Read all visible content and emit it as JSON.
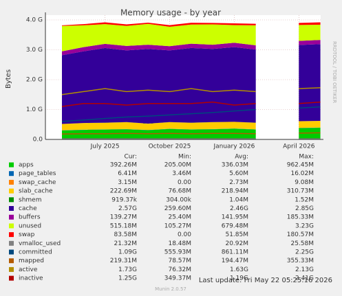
{
  "chart_data": {
    "type": "area",
    "title": "Memory usage - by year",
    "y_label": "Bytes",
    "watermark": "RRDTOOL / TOBI OETIKER",
    "categories": [
      null,
      null,
      "July 2025",
      null,
      null,
      "October 2025",
      null,
      null,
      "January 2026",
      null,
      null,
      "April 2026",
      null
    ],
    "ylim": [
      0,
      4000000000
    ],
    "yticks": [
      {
        "value": 0,
        "label": "0.0"
      },
      {
        "value": 1000000000,
        "label": "1.0 G"
      },
      {
        "value": 2000000000,
        "label": "2.0 G"
      },
      {
        "value": 3000000000,
        "label": "3.0 G"
      },
      {
        "value": 4000000000,
        "label": "4.0 G"
      }
    ],
    "grid": true,
    "legend_headers": [
      "Cur:",
      "Min:",
      "Avg:",
      "Max:"
    ],
    "series": [
      {
        "name": "apps",
        "color": "#00cc00",
        "style": "stack",
        "stats": [
          "392.26M",
          "205.00M",
          "336.03M",
          "962.45M"
        ],
        "values": [
          300000000.0,
          320000000.0,
          330000000.0,
          340000000.0,
          310000000.0,
          350000000.0,
          330000000.0,
          340000000.0,
          360000000.0,
          330000000.0,
          null,
          380000000.0,
          390000000.0
        ]
      },
      {
        "name": "page_tables",
        "color": "#0066b3",
        "style": "stack",
        "stats": [
          "6.41M",
          "3.46M",
          "5.60M",
          "16.02M"
        ],
        "values": [
          5000000.0,
          5200000.0,
          5500000.0,
          5600000.0,
          5400000.0,
          5800000.0,
          5600000.0,
          5700000.0,
          6000000.0,
          5600000.0,
          null,
          6200000.0,
          6400000.0
        ]
      },
      {
        "name": "swap_cache",
        "color": "#ff8000",
        "style": "stack",
        "stats": [
          "3.15M",
          "0.00",
          "2.73M",
          "9.08M"
        ],
        "values": [
          2000000.0,
          2500000.0,
          2700000.0,
          3000000.0,
          2600000.0,
          2800000.0,
          2700000.0,
          2900000.0,
          3000000.0,
          2700000.0,
          null,
          3100000.0,
          3200000.0
        ]
      },
      {
        "name": "slab_cache",
        "color": "#ffcc00",
        "style": "stack",
        "stats": [
          "222.69M",
          "76.68M",
          "218.94M",
          "310.73M"
        ],
        "values": [
          210000000.0,
          220000000.0,
          220000000.0,
          230000000.0,
          210000000.0,
          220000000.0,
          220000000.0,
          230000000.0,
          220000000.0,
          220000000.0,
          null,
          220000000.0,
          220000000.0
        ]
      },
      {
        "name": "shmem",
        "color": "#008f00",
        "style": "stack",
        "stats": [
          "919.37k",
          "304.00k",
          "1.04M",
          "1.52M"
        ],
        "values": [
          1000000.0,
          1000000.0,
          1100000.0,
          1000000.0,
          1000000.0,
          1100000.0,
          1000000.0,
          1000000.0,
          1100000.0,
          1000000.0,
          null,
          900000.0,
          900000.0
        ]
      },
      {
        "name": "cache",
        "color": "#330099",
        "style": "stack",
        "stats": [
          "2.57G",
          "259.60M",
          "2.46G",
          "2.85G"
        ],
        "values": [
          2300000000.0,
          2400000000.0,
          2500000000.0,
          2400000000.0,
          2500000000.0,
          2400000000.0,
          2500000000.0,
          2450000000.0,
          2500000000.0,
          2450000000.0,
          null,
          2550000000.0,
          2570000000.0
        ]
      },
      {
        "name": "buffers",
        "color": "#990099",
        "style": "stack",
        "stats": [
          "139.27M",
          "25.40M",
          "141.95M",
          "185.33M"
        ],
        "values": [
          130000000.0,
          140000000.0,
          140000000.0,
          150000000.0,
          140000000.0,
          140000000.0,
          145000000.0,
          140000000.0,
          145000000.0,
          140000000.0,
          null,
          140000000.0,
          140000000.0
        ]
      },
      {
        "name": "unused",
        "color": "#ccff00",
        "style": "stack",
        "stats": [
          "515.18M",
          "105.27M",
          "679.48M",
          "3.23G"
        ],
        "values": [
          850000000.0,
          730000000.0,
          660000000.0,
          670000000.0,
          700000000.0,
          650000000.0,
          640000000.0,
          680000000.0,
          590000000.0,
          670000000.0,
          null,
          530000000.0,
          510000000.0
        ]
      },
      {
        "name": "swap",
        "color": "#ff0000",
        "style": "stack",
        "stats": [
          "83.58M",
          "0.00",
          "51.85M",
          "180.57M"
        ],
        "values": [
          20000000.0,
          40000000.0,
          60000000.0,
          50000000.0,
          40000000.0,
          55000000.0,
          60000000.0,
          50000000.0,
          60000000.0,
          50000000.0,
          null,
          70000000.0,
          80000000.0
        ]
      },
      {
        "name": "vmalloc_used",
        "color": "#808080",
        "style": "line",
        "stats": [
          "21.32M",
          "18.48M",
          "20.92M",
          "25.58M"
        ],
        "values": [
          20000000.0,
          21000000.0,
          21000000.0,
          21000000.0,
          20000000.0,
          21000000.0,
          21000000.0,
          21000000.0,
          21000000.0,
          21000000.0,
          null,
          21000000.0,
          21000000.0
        ]
      },
      {
        "name": "committed",
        "color": "#00487d",
        "style": "line",
        "stats": [
          "1.09G",
          "555.93M",
          "861.11M",
          "2.25G"
        ],
        "values": [
          600000000.0,
          650000000.0,
          700000000.0,
          750000000.0,
          780000000.0,
          820000000.0,
          860000000.0,
          900000000.0,
          950000000.0,
          1000000000.0,
          null,
          1050000000.0,
          1090000000.0
        ]
      },
      {
        "name": "mapped",
        "color": "#b35a00",
        "style": "line",
        "stats": [
          "219.31M",
          "78.57M",
          "194.47M",
          "355.33M"
        ],
        "values": [
          180000000.0,
          190000000.0,
          190000000.0,
          200000000.0,
          190000000.0,
          200000000.0,
          190000000.0,
          200000000.0,
          200000000.0,
          190000000.0,
          null,
          210000000.0,
          220000000.0
        ]
      },
      {
        "name": "active",
        "color": "#b38f00",
        "style": "line",
        "stats": [
          "1.73G",
          "76.32M",
          "1.63G",
          "2.13G"
        ],
        "values": [
          1500000000.0,
          1600000000.0,
          1700000000.0,
          1600000000.0,
          1650000000.0,
          1600000000.0,
          1700000000.0,
          1600000000.0,
          1650000000.0,
          1600000000.0,
          null,
          1700000000.0,
          1730000000.0
        ]
      },
      {
        "name": "inactive",
        "color": "#b30000",
        "style": "line",
        "stats": [
          "1.25G",
          "349.37M",
          "1.19G",
          "2.41G"
        ],
        "values": [
          1100000000.0,
          1200000000.0,
          1200000000.0,
          1150000000.0,
          1200000000.0,
          1200000000.0,
          1200000000.0,
          1250000000.0,
          1150000000.0,
          1200000000.0,
          null,
          1200000000.0,
          1250000000.0
        ]
      }
    ],
    "last_update": "Last update: Fri May 22 05:25:16 2026",
    "version": "Munin 2.0.57"
  }
}
